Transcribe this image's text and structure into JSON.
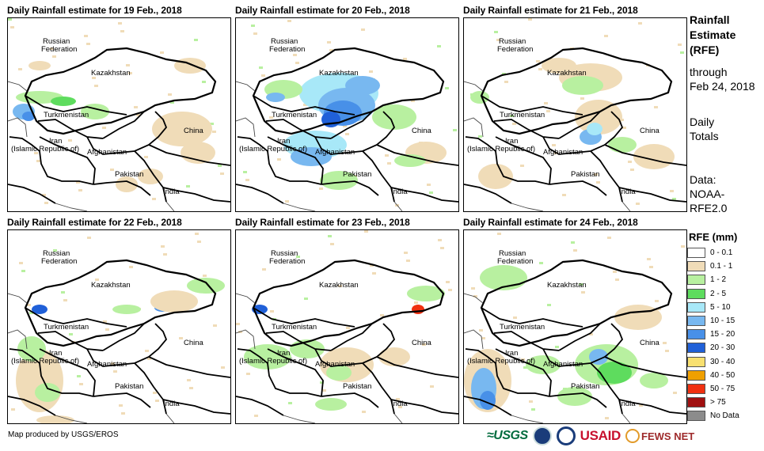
{
  "panels": [
    {
      "title": "Daily Rainfall estimate for 19 Feb., 2018"
    },
    {
      "title": "Daily Rainfall estimate for 20 Feb., 2018"
    },
    {
      "title": "Daily Rainfall estimate for 21 Feb., 2018"
    },
    {
      "title": "Daily Rainfall estimate for 22 Feb., 2018"
    },
    {
      "title": "Daily Rainfall estimate for 23 Feb., 2018"
    },
    {
      "title": "Daily Rainfall estimate for 24 Feb., 2018"
    }
  ],
  "map_labels": {
    "russia_1": "Russian",
    "russia_2": "Federation",
    "kazakhstan": "Kazakhstan",
    "turkmenistan": "Turkmenistan",
    "iran_1": "Iran",
    "iran_2": "(Islamic Republic of)",
    "afghanistan": "Afghanistan",
    "pakistan": "Pakistan",
    "china": "China",
    "india": "India"
  },
  "sidebar": {
    "title_line1": "Rainfall",
    "title_line2": "Estimate",
    "title_line3": "(RFE)",
    "through": "through",
    "date": "Feb 24, 2018",
    "daily": "Daily",
    "totals": "Totals",
    "data_label": "Data:",
    "data_src1": "NOAA-",
    "data_src2": "RFE2.0"
  },
  "legend": {
    "title": "RFE (mm)",
    "items": [
      {
        "label": "0 - 0.1",
        "color": "#ffffff"
      },
      {
        "label": "0.1 - 1",
        "color": "#f0dcb8"
      },
      {
        "label": "1 - 2",
        "color": "#b8f0a0"
      },
      {
        "label": "2 - 5",
        "color": "#5edc5e"
      },
      {
        "label": "5 - 10",
        "color": "#a8e8f8"
      },
      {
        "label": "10 - 15",
        "color": "#78b8f0"
      },
      {
        "label": "15 - 20",
        "color": "#4890e8"
      },
      {
        "label": "20 - 30",
        "color": "#2060d8"
      },
      {
        "label": "30 - 40",
        "color": "#f8e070"
      },
      {
        "label": "40 - 50",
        "color": "#f0a000"
      },
      {
        "label": "50 - 75",
        "color": "#f03010"
      },
      {
        "label": "> 75",
        "color": "#a01010"
      },
      {
        "label": "No Data",
        "color": "#8c8c8c"
      }
    ]
  },
  "footer": {
    "credit": "Map produced by USGS/EROS",
    "logo_usgs": "≈USGS",
    "logo_usaid_red": "USAID",
    "logo_fews": "FEWS NET"
  }
}
